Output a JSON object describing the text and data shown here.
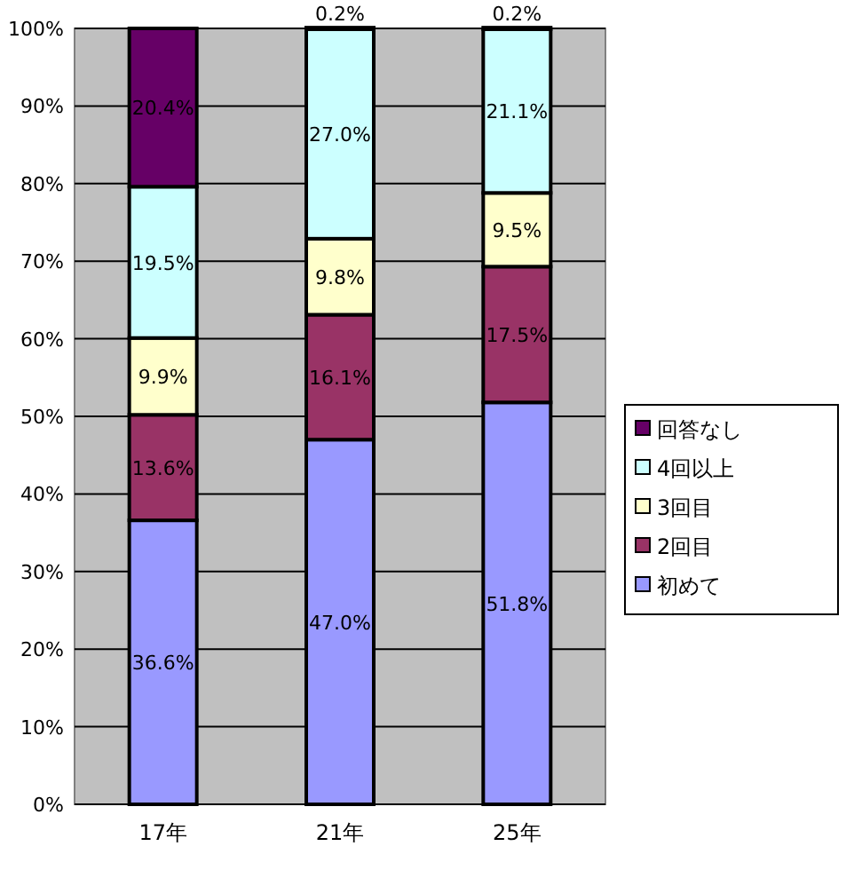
{
  "chart_data": {
    "type": "bar",
    "stacked": true,
    "categories": [
      "17年",
      "21年",
      "25年"
    ],
    "series": [
      {
        "name": "初めて",
        "color": "#9999ff",
        "values": [
          36.6,
          47.0,
          51.8
        ],
        "value_labels": [
          "36.6%",
          "47.0%",
          "51.8%"
        ]
      },
      {
        "name": "2回目",
        "color": "#993366",
        "values": [
          13.6,
          16.1,
          17.5
        ],
        "value_labels": [
          "13.6%",
          "16.1%",
          "17.5%"
        ]
      },
      {
        "name": "3回目",
        "color": "#ffffcc",
        "values": [
          9.9,
          9.8,
          9.5
        ],
        "value_labels": [
          "9.9%",
          "9.8%",
          "9.5%"
        ]
      },
      {
        "name": "4回以上",
        "color": "#ccffff",
        "values": [
          19.5,
          27.0,
          21.1
        ],
        "value_labels": [
          "19.5%",
          "27.0%",
          "21.1%"
        ]
      },
      {
        "name": "回答なし",
        "color": "#660066",
        "values": [
          20.4,
          0.2,
          0.2
        ],
        "value_labels": [
          "20.4%",
          "0.2%",
          "0.2%"
        ]
      }
    ],
    "ylim": [
      0,
      100
    ],
    "yticks": [
      {
        "value": 0,
        "label": "0%"
      },
      {
        "value": 10,
        "label": "10%"
      },
      {
        "value": 20,
        "label": "20%"
      },
      {
        "value": 30,
        "label": "30%"
      },
      {
        "value": 40,
        "label": "40%"
      },
      {
        "value": 50,
        "label": "50%"
      },
      {
        "value": 60,
        "label": "60%"
      },
      {
        "value": 70,
        "label": "70%"
      },
      {
        "value": 80,
        "label": "80%"
      },
      {
        "value": 90,
        "label": "90%"
      },
      {
        "value": 100,
        "label": "100%"
      }
    ],
    "grid": "y",
    "legend": "right"
  }
}
